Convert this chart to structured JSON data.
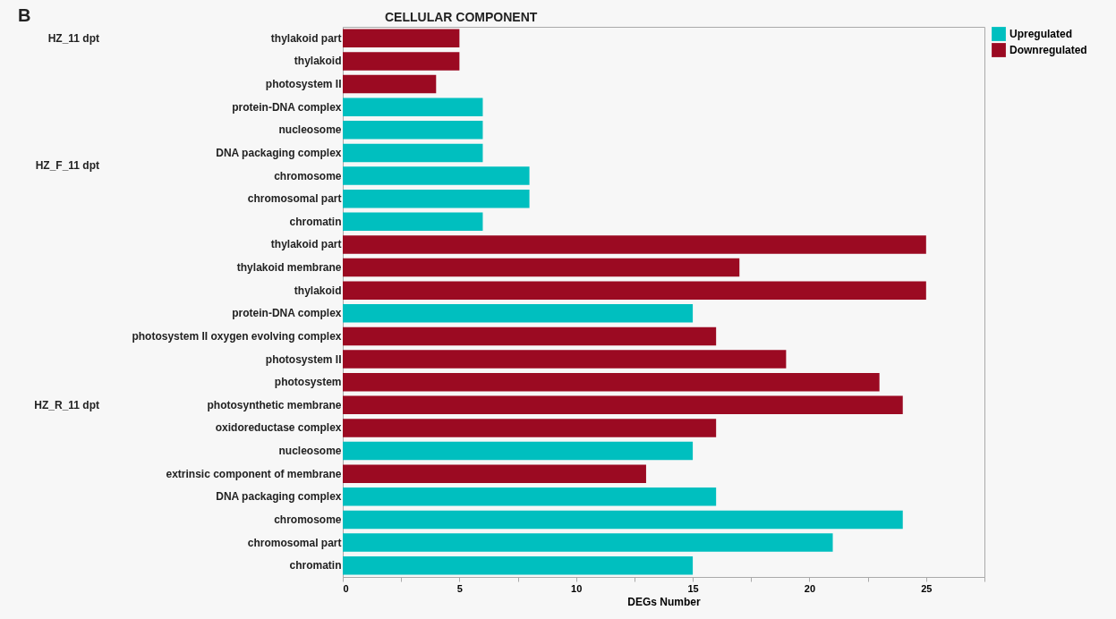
{
  "chart_data": {
    "type": "bar",
    "orientation": "horizontal",
    "title": "CELLULAR COMPONENT",
    "xlabel": "DEGs Number",
    "categories": [
      "thylakoid part",
      "thylakoid",
      "photosystem II",
      "protein-DNA complex",
      "nucleosome",
      "DNA packaging complex",
      "chromosome",
      "chromosomal part",
      "chromatin",
      "thylakoid part",
      "thylakoid membrane",
      "thylakoid",
      "protein-DNA complex",
      "photosystem II oxygen evolving complex",
      "photosystem II",
      "photosystem",
      "photosynthetic membrane",
      "oxidoreductase complex",
      "nucleosome",
      "extrinsic component of membrane",
      "DNA packaging complex",
      "chromosome",
      "chromosomal part",
      "chromatin"
    ],
    "series": [
      {
        "name": "Upregulated",
        "color": "#00bfbf",
        "values": [
          null,
          null,
          null,
          6,
          6,
          6,
          8,
          8,
          6,
          null,
          null,
          null,
          15,
          null,
          null,
          null,
          null,
          null,
          15,
          null,
          16,
          24,
          21,
          15
        ]
      },
      {
        "name": "Downregulated",
        "color": "#9b0a22",
        "values": [
          5,
          5,
          4,
          null,
          null,
          null,
          null,
          null,
          null,
          25,
          17,
          25,
          null,
          16,
          19,
          23,
          24,
          16,
          null,
          13,
          null,
          null,
          null,
          null
        ]
      }
    ],
    "xlim": [
      0,
      27.5
    ],
    "xticks": [
      0,
      {
        "value": 2.5,
        "label": null
      },
      5,
      {
        "value": 7.5,
        "label": null
      },
      10,
      {
        "value": 12.5,
        "label": null
      },
      15,
      {
        "value": 17.5,
        "label": null
      },
      20,
      {
        "value": 22.5,
        "label": null
      },
      25,
      {
        "value": 27.5,
        "label": null
      }
    ],
    "grid": false,
    "legend": "top right",
    "annotations": [
      "B",
      "HZ_11 dpt",
      "HZ_F_11 dpt",
      "HZ_R_11 dpt"
    ]
  }
}
